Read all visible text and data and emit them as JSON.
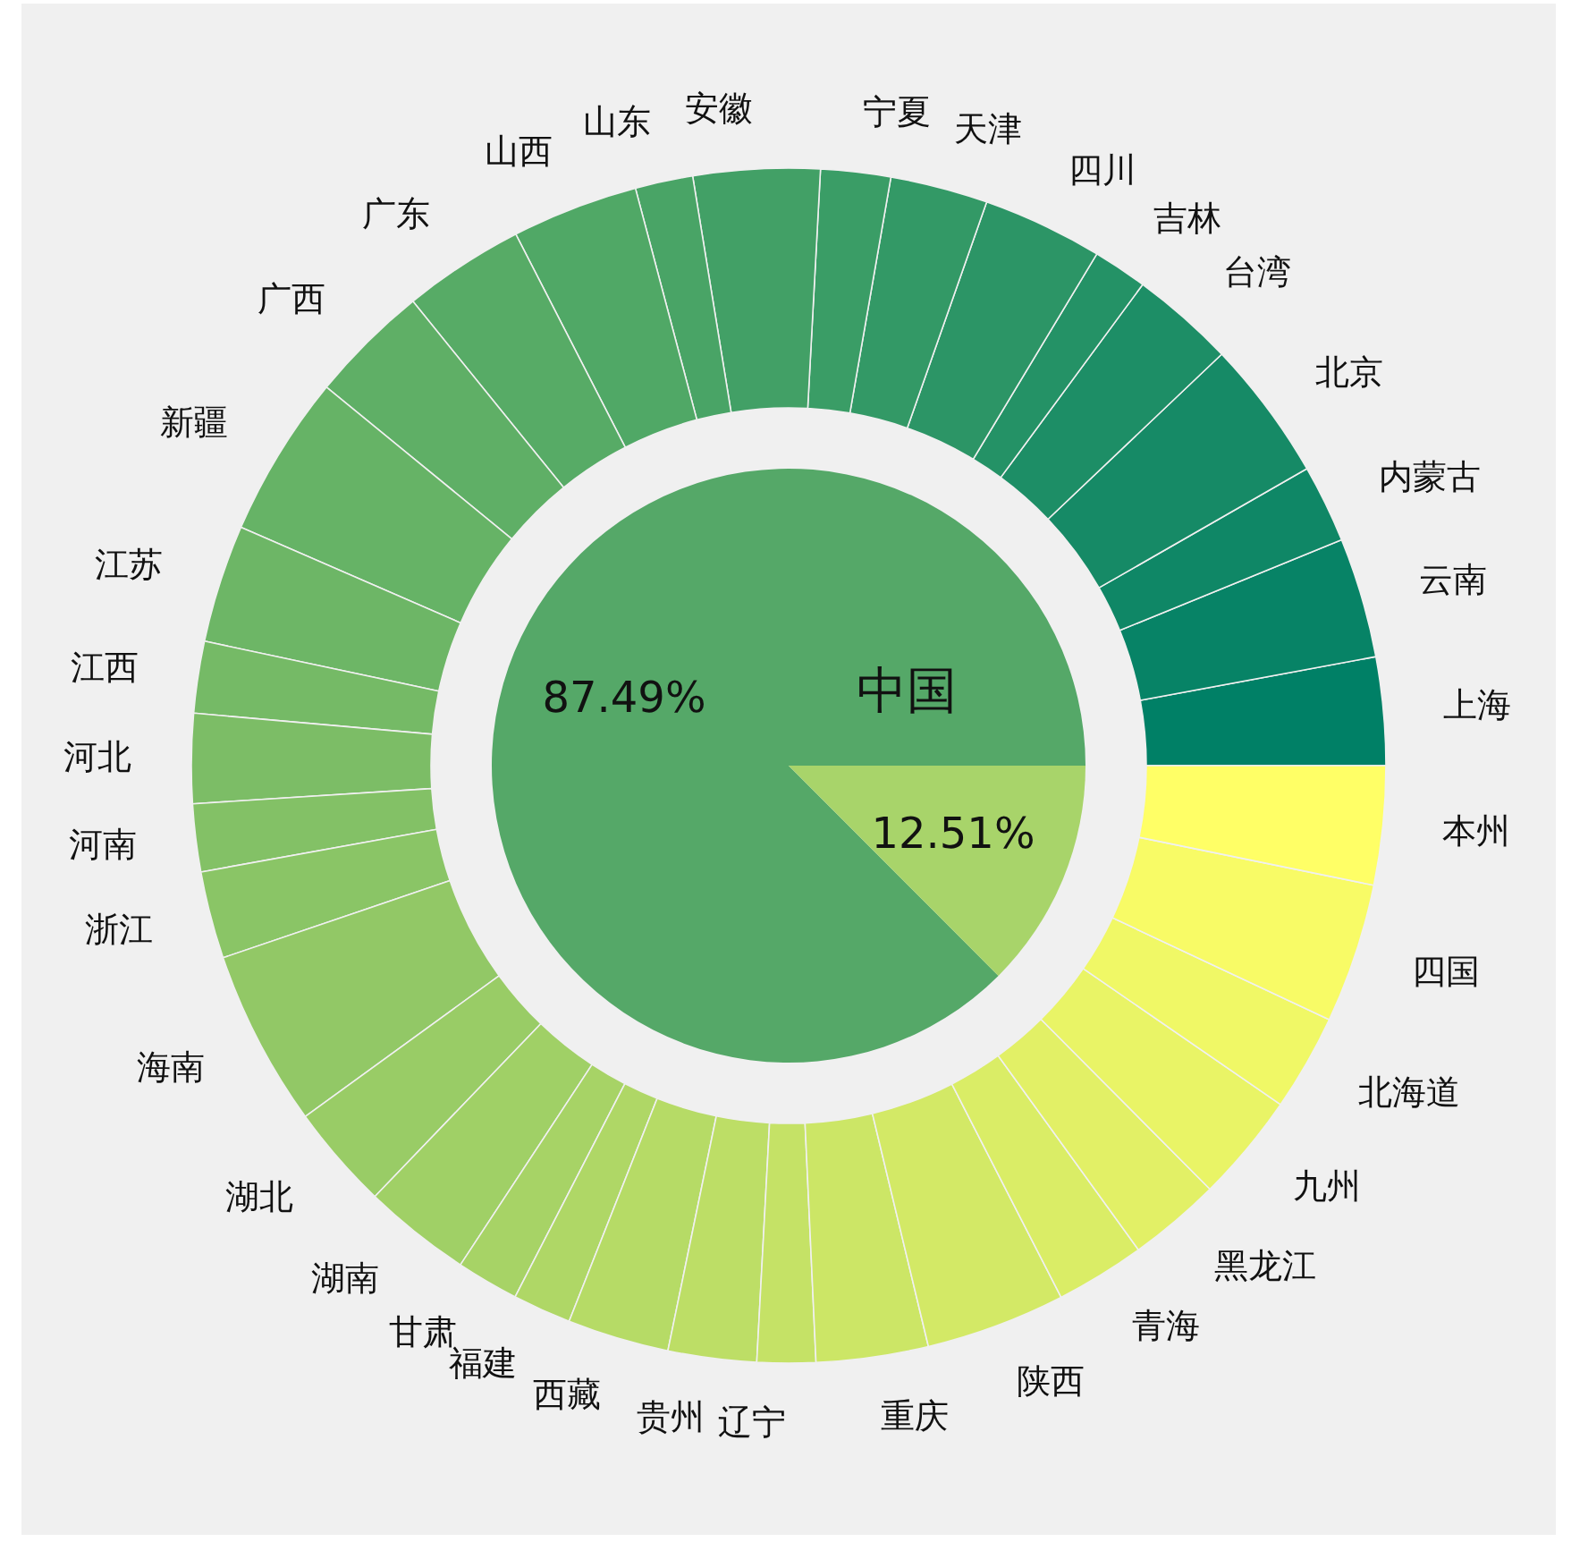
{
  "chart_data": [
    {
      "type": "pie",
      "categories": [
        "中国",
        null
      ],
      "values": [
        87.49,
        12.51
      ],
      "colors": [
        "#55a868",
        "#a8d46a"
      ],
      "value_labels": [
        "87.49%",
        "12.51%"
      ]
    },
    {
      "type": "donut",
      "categories": [
        "上海",
        "云南",
        "内蒙古",
        "北京",
        "台湾",
        "吉林",
        "四川",
        "天津",
        "宁夏",
        "安徽",
        "山东",
        "山西",
        "广东",
        "广西",
        "新疆",
        "江苏",
        "江西",
        "河北",
        "河南",
        "浙江",
        "海南",
        "湖北",
        "湖南",
        "甘肃",
        "福建",
        "西藏",
        "贵州",
        "辽宁",
        "重庆",
        "陕西",
        "青海",
        "黑龙江",
        "九州",
        "北海道",
        "四国",
        "本州"
      ],
      "values": [
        2.92,
        3.25,
        2.11,
        3.81,
        2.81,
        1.47,
        3.25,
        2.64,
        1.89,
        3.42,
        1.56,
        3.42,
        3.28,
        3.25,
        4.39,
        3.19,
        1.94,
        2.42,
        1.83,
        2.36,
        4.78,
        2.83,
        2.92,
        1.69,
        1.58,
        2.75,
        2.39,
        1.58,
        3.03,
        3.78,
        2.42,
        2.5,
        2.94,
        2.61,
        3.78,
        3.21
      ],
      "colors": [
        "#008066",
        "#078366",
        "#0f8766",
        "#168a66",
        "#1d8e66",
        "#249266",
        "#2c9566",
        "#339966",
        "#3a9d66",
        "#42a066",
        "#49a466",
        "#50a866",
        "#57ab66",
        "#5faf66",
        "#66b366",
        "#6db666",
        "#75ba66",
        "#7cbd66",
        "#83c166",
        "#8ac566",
        "#92c866",
        "#99cc66",
        "#a0d066",
        "#a7d366",
        "#afd766",
        "#b6db66",
        "#bdde66",
        "#c5e266",
        "#cce666",
        "#d3e966",
        "#daed66",
        "#e2f066",
        "#e9f466",
        "#f0f866",
        "#f8fb66",
        "#ffff66"
      ]
    }
  ]
}
